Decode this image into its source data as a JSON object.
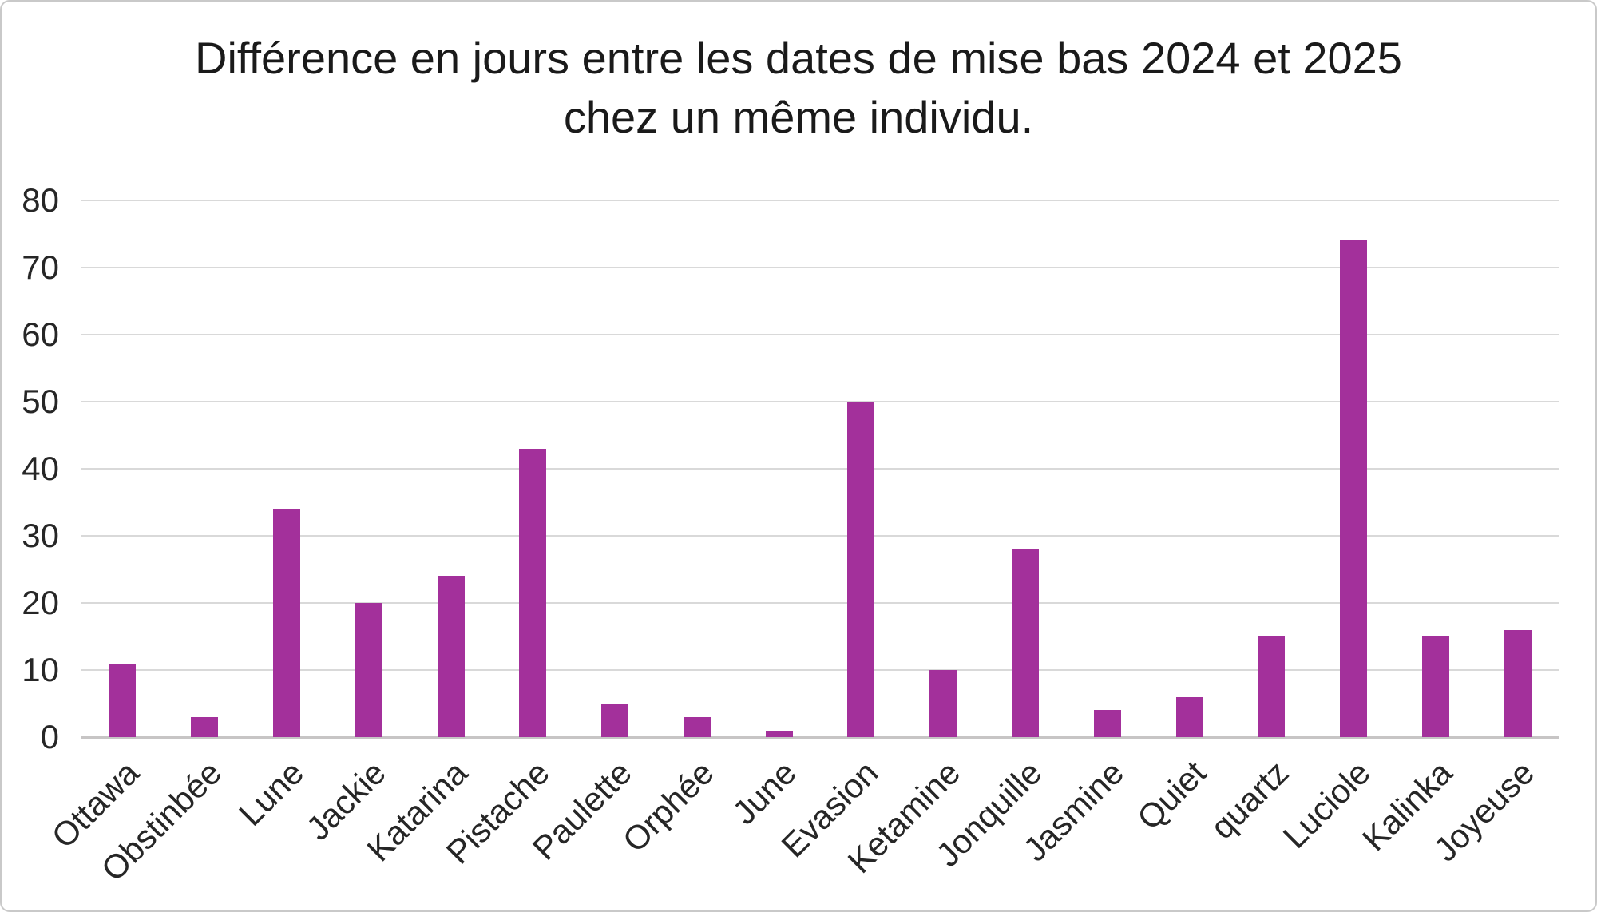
{
  "chart_data": {
    "type": "bar",
    "title": "Différence en jours entre les dates de mise bas 2024 et 2025 chez un même individu.",
    "categories": [
      "Ottawa",
      "Obstinbée",
      "Lune",
      "Jackie",
      "Katarina",
      "Pistache",
      "Paulette",
      "Orphée",
      "June",
      "Evasion",
      "Ketamine",
      "Jonquille",
      "Jasmine",
      "Quiet",
      "quartz",
      "Luciole",
      "Kalinka",
      "Joyeuse"
    ],
    "values": [
      11,
      3,
      34,
      20,
      24,
      43,
      5,
      3,
      1,
      50,
      10,
      28,
      4,
      6,
      15,
      74,
      15,
      16
    ],
    "xlabel": "",
    "ylabel": "",
    "ylim": [
      0,
      80
    ],
    "yticks": [
      0,
      10,
      20,
      30,
      40,
      50,
      60,
      70,
      80
    ],
    "grid": "horizontal",
    "legend": "none",
    "bar_color": "#A3309B",
    "gridline_color": "#D9D9D9",
    "baseline_color": "#C7C5C5",
    "title_color": "#1A1A1A",
    "axis_label_color": "#262626",
    "background": "#FFFFFF"
  }
}
